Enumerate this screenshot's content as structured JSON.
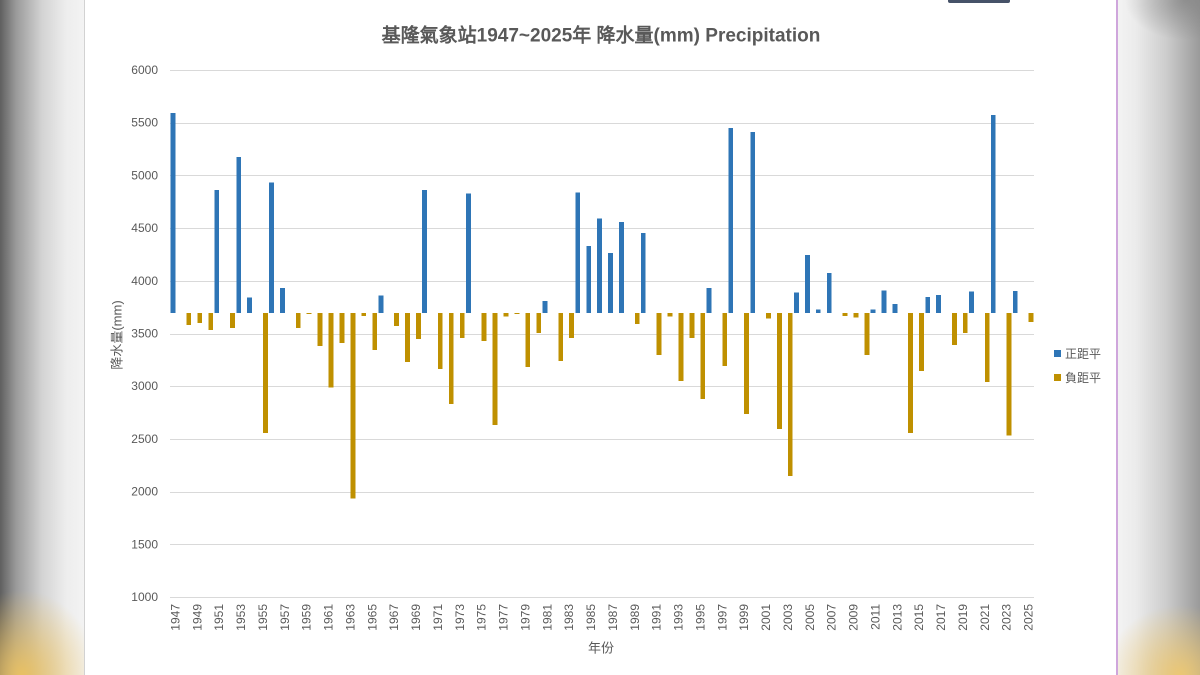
{
  "chart_data": {
    "type": "bar",
    "title": "基隆氣象站1947~2025年 降水量(mm) Precipitation",
    "xlabel": "年份",
    "ylabel": "降水量(mm)",
    "ylim": [
      1000,
      6000
    ],
    "yticks": [
      1000,
      1500,
      2000,
      2500,
      3000,
      3500,
      4000,
      4500,
      5000,
      5500,
      6000
    ],
    "baseline": 3695,
    "grid": true,
    "legend_position": "right",
    "x": [
      1947,
      1948,
      1949,
      1950,
      1951,
      1952,
      1953,
      1954,
      1955,
      1956,
      1957,
      1958,
      1959,
      1960,
      1961,
      1962,
      1963,
      1964,
      1965,
      1966,
      1967,
      1968,
      1969,
      1970,
      1971,
      1972,
      1973,
      1974,
      1975,
      1976,
      1977,
      1978,
      1979,
      1980,
      1981,
      1982,
      1983,
      1984,
      1985,
      1986,
      1987,
      1988,
      1989,
      1990,
      1991,
      1992,
      1993,
      1994,
      1995,
      1996,
      1997,
      1998,
      1999,
      2000,
      2001,
      2002,
      2003,
      2004,
      2005,
      2006,
      2007,
      2008,
      2009,
      2010,
      2011,
      2012,
      2013,
      2014,
      2015,
      2016,
      2017,
      2018,
      2019,
      2020,
      2021,
      2022,
      2023,
      2024,
      2025
    ],
    "x_tick_labels": [
      "1947",
      "1949",
      "1951",
      "1953",
      "1955",
      "1957",
      "1959",
      "1961",
      "1963",
      "1965",
      "1967",
      "1969",
      "1971",
      "1973",
      "1975",
      "1977",
      "1979",
      "1981",
      "1983",
      "1985",
      "1987",
      "1989",
      "1991",
      "1993",
      "1995",
      "1997",
      "1999",
      "2001",
      "2003",
      "2005",
      "2007",
      "2009",
      "2011",
      "2013",
      "2015",
      "2017",
      "2019",
      "2021",
      "2023",
      "2025"
    ],
    "series": [
      {
        "name": "正距平",
        "color": "#2E75B6",
        "values": [
          5590,
          null,
          null,
          null,
          4860,
          null,
          5175,
          3840,
          null,
          4935,
          3930,
          null,
          null,
          null,
          null,
          null,
          null,
          null,
          null,
          3860,
          null,
          null,
          null,
          4860,
          null,
          null,
          null,
          4830,
          null,
          null,
          null,
          null,
          null,
          null,
          3810,
          null,
          null,
          4840,
          4330,
          4590,
          4265,
          4560,
          null,
          4455,
          null,
          null,
          null,
          null,
          null,
          3930,
          null,
          5450,
          null,
          5410,
          null,
          null,
          null,
          3890,
          4245,
          3730,
          4075,
          null,
          null,
          null,
          3730,
          3910,
          3780,
          null,
          null,
          3845,
          3865,
          null,
          null,
          3900,
          null,
          5575,
          null,
          3905,
          null
        ]
      },
      {
        "name": "負距平",
        "color": "#BF9000",
        "values": [
          null,
          3580,
          3600,
          3535,
          null,
          3550,
          null,
          null,
          2555,
          null,
          null,
          3550,
          3685,
          3380,
          2990,
          3410,
          1935,
          3665,
          3345,
          null,
          3570,
          3230,
          3450,
          null,
          3165,
          2830,
          3455,
          null,
          3430,
          2630,
          3660,
          3690,
          3180,
          3505,
          null,
          3240,
          3455,
          null,
          null,
          null,
          null,
          null,
          3590,
          null,
          3295,
          3660,
          3050,
          3455,
          2880,
          null,
          3190,
          null,
          2735,
          null,
          3640,
          2595,
          2150,
          null,
          null,
          null,
          null,
          3665,
          3650,
          3295,
          null,
          null,
          null,
          2555,
          3145,
          null,
          null,
          3390,
          3505,
          null,
          3040,
          null,
          2530,
          null,
          3610
        ]
      }
    ]
  }
}
